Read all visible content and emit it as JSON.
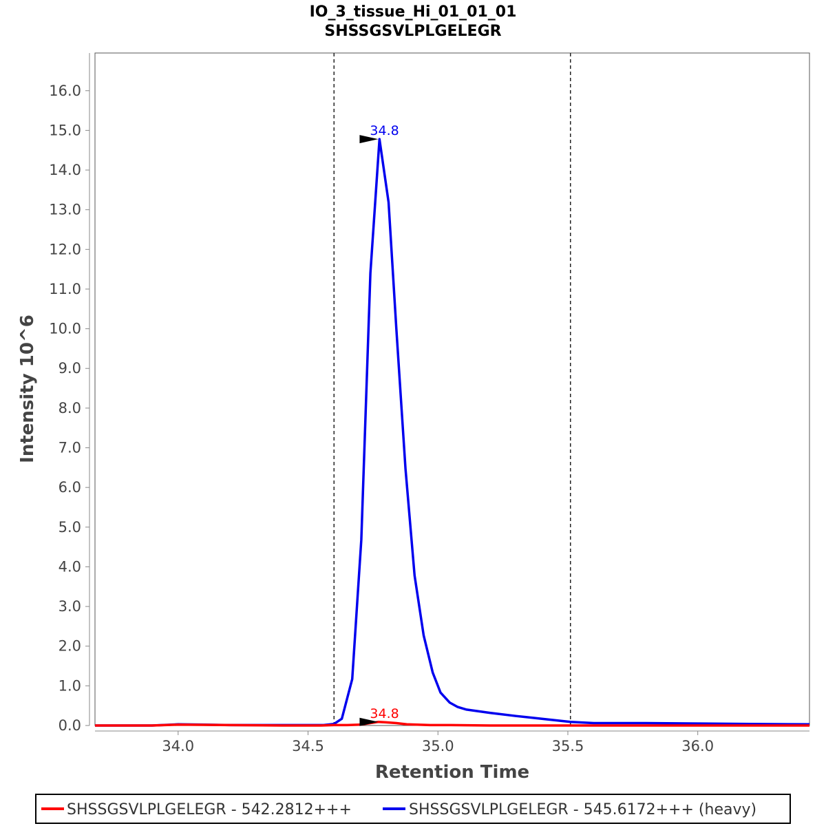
{
  "chart_data": {
    "type": "line",
    "title": "IO_3_tissue_Hi_01_01_01",
    "subtitle": "SHSSGSVLPLGELEGR",
    "xlabel": "Retention Time",
    "ylabel": "Intensity 10^6",
    "xlim": [
      33.68,
      36.43
    ],
    "ylim": [
      0,
      16.95
    ],
    "x_ticks": [
      "34.0",
      "34.5",
      "35.0",
      "35.5",
      "36.0"
    ],
    "y_ticks": [
      "0.0",
      "1.0",
      "2.0",
      "3.0",
      "4.0",
      "5.0",
      "6.0",
      "7.0",
      "8.0",
      "9.0",
      "10.0",
      "11.0",
      "12.0",
      "13.0",
      "14.0",
      "15.0",
      "16.0"
    ],
    "integration_bounds": [
      34.6,
      35.51
    ],
    "grid": false,
    "legend_position": "bottom",
    "series": [
      {
        "name": "SHSSGSVLPLGELEGR - 542.2812+++",
        "color": "#ff0000",
        "peak_label": "34.8",
        "peak": [
          34.77,
          0.09
        ],
        "x": [
          33.68,
          33.9,
          34.0,
          34.2,
          34.4,
          34.55,
          34.6,
          34.65,
          34.7,
          34.74,
          34.77,
          34.8,
          34.84,
          34.88,
          34.92,
          34.97,
          35.05,
          35.2,
          35.5,
          36.0,
          36.43
        ],
        "values": [
          0.0,
          0.0,
          0.02,
          0.01,
          0.0,
          0.0,
          0.01,
          0.01,
          0.02,
          0.06,
          0.09,
          0.08,
          0.06,
          0.03,
          0.02,
          0.01,
          0.01,
          0.0,
          0.0,
          0.0,
          0.0
        ]
      },
      {
        "name": "SHSSGSVLPLGELEGR - 545.6172+++ (heavy)",
        "color": "#0000ee",
        "peak_label": "34.8",
        "peak": [
          34.77,
          14.78
        ],
        "x": [
          33.68,
          33.9,
          34.0,
          34.1,
          34.2,
          34.4,
          34.56,
          34.6,
          34.63,
          34.67,
          34.705,
          34.74,
          34.775,
          34.81,
          34.84,
          34.875,
          34.91,
          34.945,
          34.98,
          35.01,
          35.045,
          35.075,
          35.11,
          35.2,
          35.3,
          35.4,
          35.51,
          35.6,
          35.8,
          36.0,
          36.2,
          36.43
        ],
        "values": [
          0.0,
          0.0,
          0.03,
          0.02,
          0.01,
          0.01,
          0.01,
          0.04,
          0.17,
          1.17,
          4.68,
          11.4,
          14.78,
          13.19,
          10.0,
          6.47,
          3.78,
          2.27,
          1.33,
          0.83,
          0.58,
          0.47,
          0.4,
          0.32,
          0.24,
          0.17,
          0.09,
          0.06,
          0.06,
          0.05,
          0.04,
          0.03
        ]
      }
    ]
  }
}
